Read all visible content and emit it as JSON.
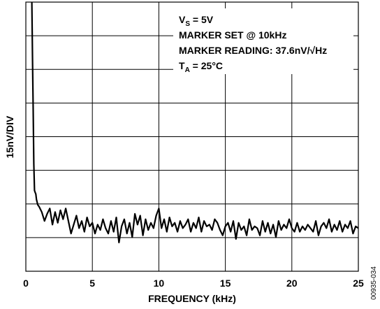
{
  "chart_data": {
    "type": "line",
    "xlabel": "FREQUENCY (kHz)",
    "ylabel": "15nV/DIV",
    "xlim": [
      0,
      25
    ],
    "ylim": [
      0,
      150
    ],
    "x_ticks": [
      "0",
      "5",
      "10",
      "15",
      "20",
      "25"
    ],
    "grid": true,
    "annotations": [
      {
        "prefix": "V",
        "sub": "S",
        "suffix": " = 5V"
      },
      {
        "prefix": "MARKER SET @ 10kHz",
        "sub": "",
        "suffix": ""
      },
      {
        "prefix": "MARKER READING: 37.6nV/√Hz",
        "sub": "",
        "suffix": ""
      },
      {
        "prefix": "T",
        "sub": "A",
        "suffix": " = 25°C"
      }
    ],
    "figure_id": "00935-034",
    "color": "#000000",
    "series": [
      {
        "x": [
          0.45,
          0.5,
          0.55,
          0.6,
          0.65,
          0.7,
          0.75,
          0.8,
          0.9,
          1.0,
          1.2,
          1.4,
          1.6,
          1.8,
          2.0,
          2.2,
          2.4,
          2.6,
          2.8,
          3.0,
          3.2,
          3.4,
          3.6,
          3.8,
          4.0,
          4.2,
          4.4,
          4.6,
          4.8,
          5.0,
          5.2,
          5.4,
          5.6,
          5.8,
          6.0,
          6.2,
          6.4,
          6.6,
          6.8,
          7.0,
          7.2,
          7.4,
          7.6,
          7.8,
          8.0,
          8.2,
          8.4,
          8.6,
          8.8,
          9.0,
          9.2,
          9.4,
          9.6,
          9.8,
          10.0,
          10.2,
          10.4,
          10.6,
          10.8,
          11.0,
          11.2,
          11.4,
          11.6,
          11.8,
          12.0,
          12.2,
          12.4,
          12.6,
          12.8,
          13.0,
          13.2,
          13.4,
          13.6,
          13.8,
          14.0,
          14.2,
          14.4,
          14.6,
          14.8,
          15.0,
          15.2,
          15.4,
          15.6,
          15.8,
          16.0,
          16.2,
          16.4,
          16.6,
          16.8,
          17.0,
          17.2,
          17.4,
          17.6,
          17.8,
          18.0,
          18.2,
          18.4,
          18.6,
          18.8,
          19.0,
          19.2,
          19.4,
          19.6,
          19.8,
          20.0,
          20.2,
          20.4,
          20.6,
          20.8,
          21.0,
          21.2,
          21.4,
          21.6,
          21.8,
          22.0,
          22.2,
          22.4,
          22.6,
          22.8,
          23.0,
          23.2,
          23.4,
          23.6,
          23.8,
          24.0,
          24.2,
          24.4,
          24.6,
          24.8,
          25.0
        ],
        "y": [
          150,
          120,
          90,
          60,
          45,
          44,
          43,
          40,
          37,
          36,
          33,
          28,
          32,
          35,
          26,
          33,
          27,
          34,
          29,
          35,
          28,
          21,
          26,
          31,
          24,
          28,
          22,
          30,
          25,
          27,
          21,
          26,
          23,
          29,
          24,
          21,
          28,
          22,
          30,
          16,
          25,
          29,
          21,
          27,
          19,
          32,
          26,
          31,
          20,
          29,
          23,
          27,
          24,
          31,
          35,
          24,
          29,
          22,
          30,
          25,
          27,
          22,
          28,
          24,
          26,
          29,
          22,
          27,
          24,
          30,
          22,
          28,
          25,
          26,
          23,
          29,
          27,
          23,
          20,
          25,
          27,
          22,
          28,
          18,
          27,
          23,
          25,
          20,
          29,
          23,
          25,
          24,
          20,
          28,
          22,
          27,
          21,
          26,
          19,
          28,
          23,
          26,
          24,
          29,
          24,
          22,
          27,
          22,
          25,
          23,
          26,
          24,
          22,
          28,
          20,
          25,
          27,
          24,
          29,
          22,
          26,
          23,
          28,
          22,
          26,
          24,
          28,
          21,
          25,
          24
        ]
      }
    ]
  }
}
